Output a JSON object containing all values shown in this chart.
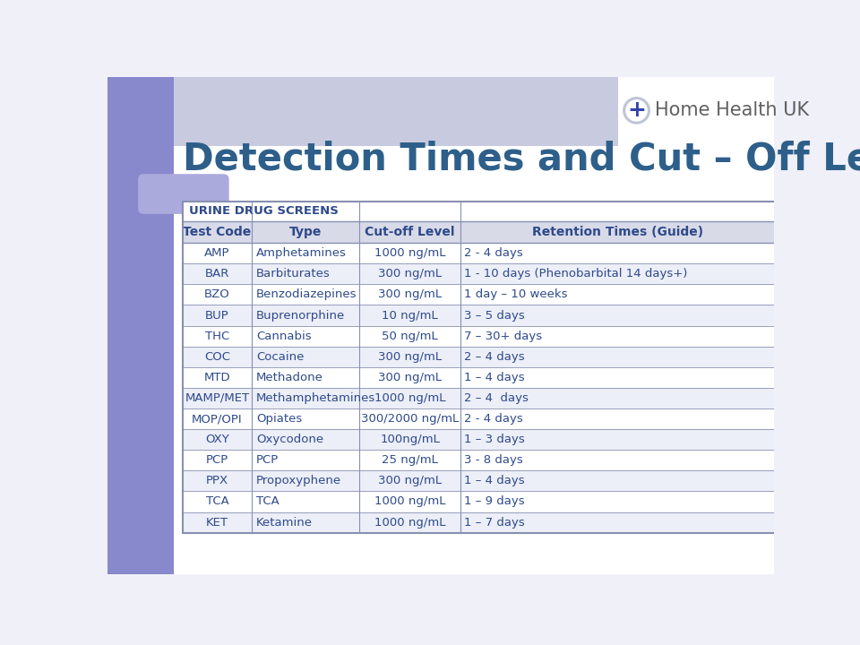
{
  "title": "Detection Times and Cut – Off Levels",
  "title_color": "#2E5F8A",
  "background_color": "#F0F0F8",
  "header_label": "URINE DRUG SCREENS",
  "col_headers": [
    "Test Code",
    "Type",
    "Cut-off Level",
    "Retention Times (Guide)"
  ],
  "col_header_color": "#2E4A8B",
  "rows": [
    [
      "AMP",
      "Amphetamines",
      "1000 ng/mL",
      "2 - 4 days"
    ],
    [
      "BAR",
      "Barbiturates",
      "300 ng/mL",
      "1 - 10 days (Phenobarbital 14 days+)"
    ],
    [
      "BZO",
      "Benzodiazepines",
      "300 ng/mL",
      "1 day – 10 weeks"
    ],
    [
      "BUP",
      "Buprenorphine",
      "10 ng/mL",
      "3 – 5 days"
    ],
    [
      "THC",
      "Cannabis",
      "50 ng/mL",
      "7 – 30+ days"
    ],
    [
      "COC",
      "Cocaine",
      "300 ng/mL",
      "2 – 4 days"
    ],
    [
      "MTD",
      "Methadone",
      "300 ng/mL",
      "1 – 4 days"
    ],
    [
      "MAMP/MET",
      "Methamphetamines",
      "1000 ng/mL",
      "2 – 4  days"
    ],
    [
      "MOP/OPI",
      "Opiates",
      "300/2000 ng/mL",
      "2 - 4 days"
    ],
    [
      "OXY",
      "Oxycodone",
      "100ng/mL",
      "1 – 3 days"
    ],
    [
      "PCP",
      "PCP",
      "25 ng/mL",
      "3 - 8 days"
    ],
    [
      "PPX",
      "Propoxyphene",
      "300 ng/mL",
      "1 – 4 days"
    ],
    [
      "TCA",
      "TCA",
      "1000 ng/mL",
      "1 – 9 days"
    ],
    [
      "KET",
      "Ketamine",
      "1000 ng/mL",
      "1 – 7 days"
    ]
  ],
  "table_border_color": "#8890B0",
  "row_odd_color": "#FFFFFF",
  "row_even_color": "#ECEEF8",
  "text_color": "#2E4A8B",
  "header_row_color": "#D8DAE8",
  "logo_text_color": "#606060",
  "logo_cross_color": "#3344AA",
  "logo_circle_color": "#C0C4D8",
  "logo_text": "Home Health UK",
  "left_panel_color": "#8888CC",
  "accent_pill_color": "#AAAADD",
  "top_strip_color": "#C8CADF"
}
